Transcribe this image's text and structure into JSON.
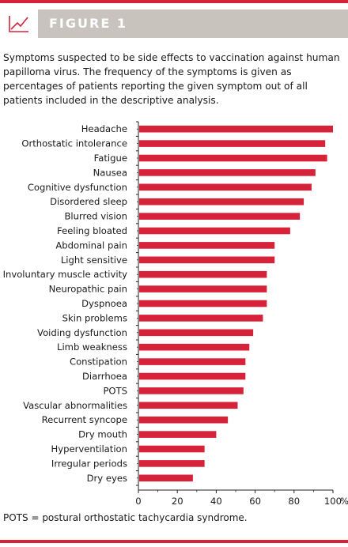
{
  "figure": {
    "label": "FIGURE 1",
    "icon": "line-chart-icon",
    "caption": "Symptoms suspected to be side effects to vaccination against human papilloma virus. The frequency of the symptoms is given as percentages of patients reporting the given symptom out of all patients included in the descriptive analysis.",
    "footnote": "POTS = postural orthostatic tachycardia syndrome."
  },
  "colors": {
    "accent": "#d6233a",
    "header_bar": "#c9c3bd",
    "bar": "#d6233a"
  },
  "chart_data": {
    "type": "bar",
    "orientation": "horizontal",
    "categories": [
      "Headache",
      "Orthostatic intolerance",
      "Fatigue",
      "Nausea",
      "Cognitive dysfunction",
      "Disordered sleep",
      "Blurred vision",
      "Feeling bloated",
      "Abdominal pain",
      "Light sensitive",
      "Involuntary muscle activity",
      "Neuropathic pain",
      "Dyspnoea",
      "Skin problems",
      "Voiding dysfunction",
      "Limb weakness",
      "Constipation",
      "Diarrhoea",
      "POTS",
      "Vascular abnormalities",
      "Recurrent syncope",
      "Dry mouth",
      "Hyperventilation",
      "Irregular periods",
      "Dry eyes"
    ],
    "values": [
      100,
      96,
      97,
      91,
      89,
      85,
      83,
      78,
      70,
      70,
      66,
      66,
      66,
      64,
      59,
      57,
      55,
      55,
      54,
      51,
      46,
      40,
      34,
      34,
      28
    ],
    "xticks": [
      "0",
      "20",
      "40",
      "60",
      "80",
      "100"
    ],
    "xtick_unit": "%",
    "xlim": [
      0,
      100
    ],
    "legend": "none",
    "grid": false
  }
}
